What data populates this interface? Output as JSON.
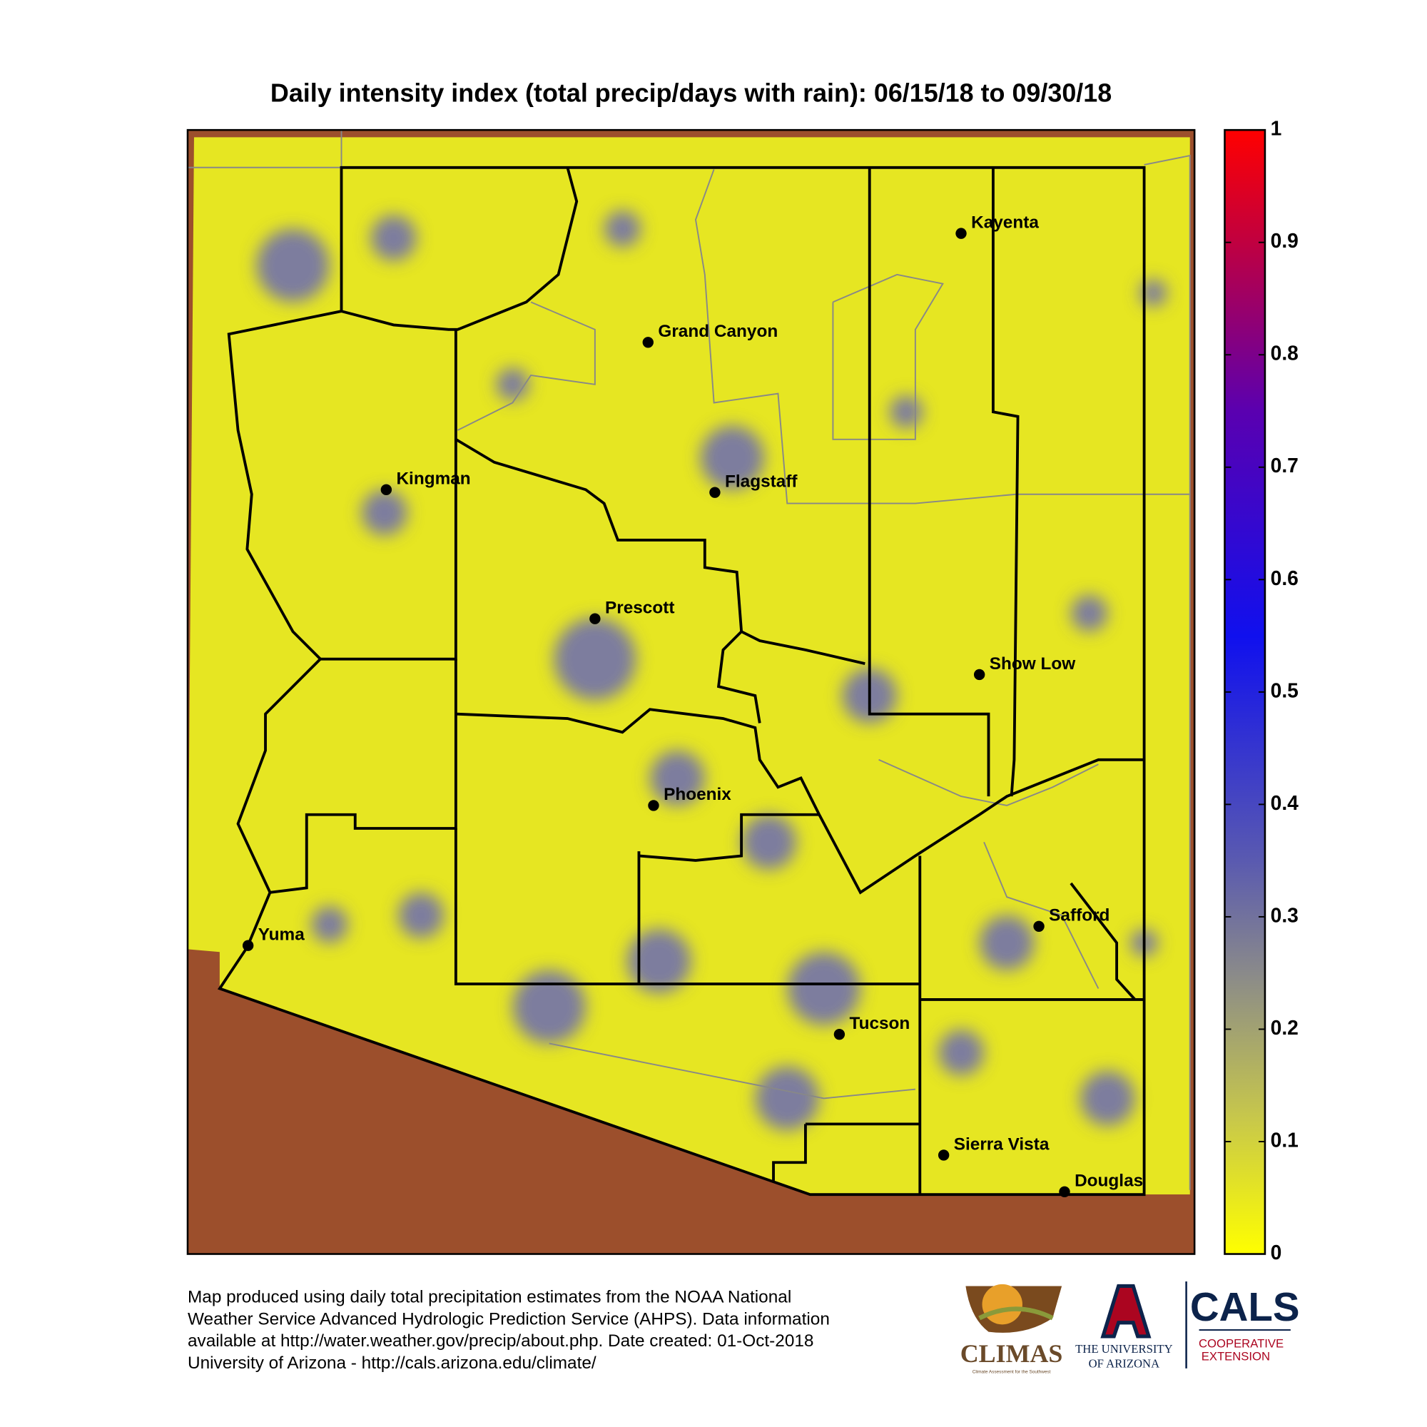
{
  "title": "Daily intensity index (total precip/days with rain): 06/15/18 to 09/30/18",
  "colorbar": {
    "lim": [
      0,
      1
    ],
    "ticks": [
      0,
      0.1,
      0.2,
      0.3,
      0.4,
      0.5,
      0.6,
      0.7,
      0.8,
      0.9,
      1
    ]
  },
  "cities": [
    "Kayenta",
    "Grand Canyon",
    "Kingman",
    "Flagstaff",
    "Prescott",
    "Show Low",
    "Phoenix",
    "Yuma",
    "Safford",
    "Tucson",
    "Sierra Vista",
    "Douglas"
  ],
  "footer": [
    "Map produced using daily total precipitation estimates from the NOAA National",
    "Weather Service Advanced Hydrologic Prediction Service (AHPS). Data information",
    "available at http://water.weather.gov/precip/about.php. Date created: 01-Oct-2018",
    "University of Arizona - http://cals.arizona.edu/climate/"
  ],
  "logos": {
    "climas": "CLIMAS",
    "climas_sub": "Climate Assessment for the Southwest",
    "university": [
      "THE UNIVERSITY",
      "OF ARIZONA"
    ],
    "cals": "CALS",
    "cals_sub": [
      "COOPERATIVE",
      "EXTENSION"
    ]
  }
}
